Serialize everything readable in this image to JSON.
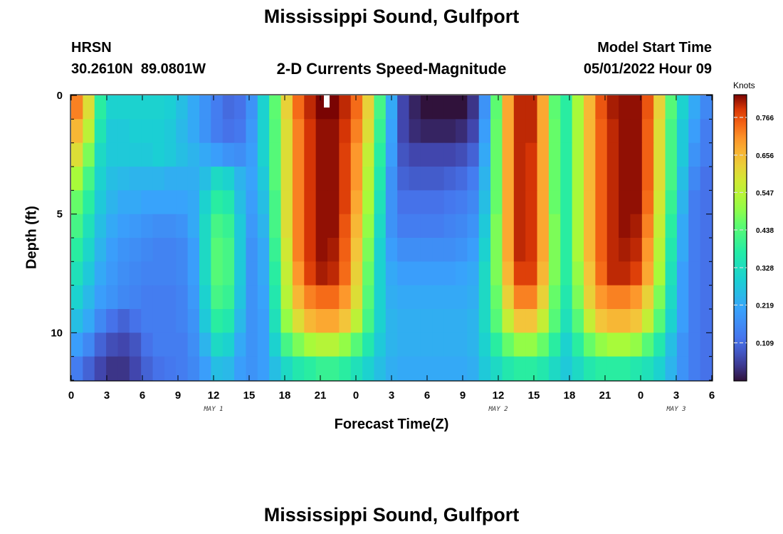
{
  "header": {
    "title": "Mississippi Sound, Gulfport",
    "station_code": "HRSN",
    "coordinates": "30.2610N  89.0801W",
    "plot_subtitle": "2-D Currents Speed-Magnitude",
    "model_start_label": "Model Start Time",
    "model_start_value": "05/01/2022 Hour 09"
  },
  "footer": {
    "title": "Mississippi Sound, Gulfport"
  },
  "colorbar": {
    "title": "Knots",
    "ticks": [
      "0.766",
      "0.656",
      "0.547",
      "0.438",
      "0.328",
      "0.219",
      "0.109"
    ],
    "tick_values": [
      0.766,
      0.656,
      0.547,
      0.438,
      0.328,
      0.219,
      0.109
    ],
    "min": 0.0,
    "max": 0.83,
    "colormap": "turbo"
  },
  "chart_data": {
    "type": "heatmap",
    "xlabel": "Forecast Time(Z)",
    "ylabel": "Depth (ft)",
    "x_tick_labels": [
      "0",
      "3",
      "6",
      "9",
      "12",
      "15",
      "18",
      "21",
      "0",
      "3",
      "6",
      "9",
      "12",
      "15",
      "18",
      "21",
      "0",
      "3",
      "6"
    ],
    "x_range_hours": [
      0,
      54
    ],
    "date_labels": [
      {
        "text": "MAY 1",
        "hour": 12
      },
      {
        "text": "MAY 2",
        "hour": 36
      },
      {
        "text": "MAY 3",
        "hour": 51
      }
    ],
    "y_tick_labels": [
      "0",
      "5",
      "10"
    ],
    "y_tick_values": [
      0,
      5,
      10
    ],
    "y_range_ft": [
      0,
      12
    ],
    "y_inverted": true,
    "x_hours": [
      0,
      1,
      2,
      3,
      4,
      5,
      6,
      7,
      8,
      9,
      10,
      11,
      12,
      13,
      14,
      15,
      16,
      17,
      18,
      19,
      20,
      21,
      22,
      23,
      24,
      25,
      26,
      27,
      28,
      29,
      30,
      31,
      32,
      33,
      34,
      35,
      36,
      37,
      38,
      39,
      40,
      41,
      42,
      43,
      44,
      45,
      46,
      47,
      48,
      49,
      50,
      51,
      52,
      53,
      54
    ],
    "depth_rows_ft": [
      0.5,
      1.5,
      2.5,
      3.5,
      4.5,
      5.5,
      6.5,
      7.5,
      8.5,
      9.5,
      10.5,
      11.5
    ],
    "speed_knots_by_depth": [
      [
        0.72,
        0.6,
        0.38,
        0.3,
        0.3,
        0.3,
        0.3,
        0.3,
        0.29,
        0.26,
        0.22,
        0.18,
        0.14,
        0.11,
        0.12,
        0.18,
        0.3,
        0.45,
        0.62,
        0.74,
        0.8,
        0.83,
        0.83,
        0.8,
        0.74,
        0.62,
        0.42,
        0.22,
        0.06,
        0.02,
        0.0,
        0.0,
        0.0,
        0.0,
        0.04,
        0.18,
        0.45,
        0.68,
        0.8,
        0.8,
        0.68,
        0.45,
        0.38,
        0.52,
        0.66,
        0.76,
        0.81,
        0.82,
        0.82,
        0.76,
        0.62,
        0.44,
        0.3,
        0.22,
        0.16
      ],
      [
        0.66,
        0.55,
        0.35,
        0.28,
        0.28,
        0.29,
        0.29,
        0.29,
        0.28,
        0.25,
        0.22,
        0.18,
        0.14,
        0.12,
        0.13,
        0.19,
        0.3,
        0.44,
        0.6,
        0.72,
        0.79,
        0.82,
        0.82,
        0.79,
        0.72,
        0.6,
        0.4,
        0.21,
        0.06,
        0.03,
        0.02,
        0.02,
        0.02,
        0.03,
        0.06,
        0.2,
        0.46,
        0.68,
        0.8,
        0.8,
        0.68,
        0.46,
        0.38,
        0.52,
        0.66,
        0.75,
        0.8,
        0.82,
        0.82,
        0.75,
        0.6,
        0.42,
        0.28,
        0.2,
        0.14
      ],
      [
        0.6,
        0.48,
        0.32,
        0.28,
        0.28,
        0.28,
        0.28,
        0.29,
        0.28,
        0.26,
        0.24,
        0.22,
        0.2,
        0.18,
        0.17,
        0.2,
        0.3,
        0.44,
        0.6,
        0.72,
        0.79,
        0.82,
        0.82,
        0.78,
        0.7,
        0.56,
        0.38,
        0.2,
        0.08,
        0.06,
        0.06,
        0.06,
        0.06,
        0.07,
        0.1,
        0.22,
        0.46,
        0.68,
        0.8,
        0.79,
        0.68,
        0.46,
        0.38,
        0.52,
        0.66,
        0.75,
        0.8,
        0.82,
        0.82,
        0.75,
        0.6,
        0.42,
        0.28,
        0.18,
        0.14
      ],
      [
        0.52,
        0.42,
        0.3,
        0.26,
        0.25,
        0.24,
        0.24,
        0.24,
        0.23,
        0.23,
        0.23,
        0.26,
        0.32,
        0.3,
        0.24,
        0.21,
        0.28,
        0.44,
        0.6,
        0.72,
        0.79,
        0.82,
        0.82,
        0.78,
        0.7,
        0.54,
        0.36,
        0.18,
        0.1,
        0.09,
        0.09,
        0.09,
        0.1,
        0.11,
        0.14,
        0.24,
        0.46,
        0.68,
        0.8,
        0.79,
        0.68,
        0.46,
        0.38,
        0.52,
        0.66,
        0.75,
        0.8,
        0.82,
        0.82,
        0.75,
        0.6,
        0.42,
        0.26,
        0.16,
        0.12
      ],
      [
        0.46,
        0.38,
        0.28,
        0.24,
        0.22,
        0.22,
        0.21,
        0.21,
        0.21,
        0.21,
        0.22,
        0.3,
        0.38,
        0.36,
        0.26,
        0.2,
        0.26,
        0.42,
        0.6,
        0.72,
        0.79,
        0.82,
        0.82,
        0.78,
        0.68,
        0.52,
        0.34,
        0.18,
        0.12,
        0.12,
        0.12,
        0.12,
        0.13,
        0.14,
        0.16,
        0.26,
        0.46,
        0.68,
        0.8,
        0.79,
        0.68,
        0.46,
        0.38,
        0.52,
        0.66,
        0.75,
        0.8,
        0.82,
        0.82,
        0.74,
        0.58,
        0.4,
        0.24,
        0.14,
        0.12
      ],
      [
        0.42,
        0.34,
        0.26,
        0.22,
        0.2,
        0.19,
        0.18,
        0.17,
        0.17,
        0.18,
        0.22,
        0.32,
        0.42,
        0.4,
        0.28,
        0.19,
        0.24,
        0.42,
        0.6,
        0.72,
        0.79,
        0.82,
        0.82,
        0.76,
        0.66,
        0.5,
        0.32,
        0.18,
        0.14,
        0.14,
        0.14,
        0.14,
        0.15,
        0.16,
        0.18,
        0.28,
        0.48,
        0.68,
        0.8,
        0.79,
        0.68,
        0.48,
        0.38,
        0.52,
        0.66,
        0.75,
        0.8,
        0.82,
        0.81,
        0.72,
        0.56,
        0.38,
        0.22,
        0.14,
        0.12
      ],
      [
        0.38,
        0.31,
        0.24,
        0.2,
        0.18,
        0.17,
        0.16,
        0.15,
        0.15,
        0.16,
        0.2,
        0.32,
        0.44,
        0.42,
        0.28,
        0.18,
        0.22,
        0.4,
        0.58,
        0.72,
        0.79,
        0.82,
        0.81,
        0.75,
        0.64,
        0.48,
        0.3,
        0.2,
        0.17,
        0.17,
        0.17,
        0.17,
        0.17,
        0.18,
        0.2,
        0.3,
        0.48,
        0.68,
        0.8,
        0.79,
        0.68,
        0.48,
        0.38,
        0.52,
        0.66,
        0.75,
        0.8,
        0.81,
        0.8,
        0.7,
        0.54,
        0.36,
        0.22,
        0.14,
        0.12
      ],
      [
        0.34,
        0.28,
        0.22,
        0.19,
        0.17,
        0.16,
        0.15,
        0.15,
        0.15,
        0.16,
        0.2,
        0.32,
        0.44,
        0.42,
        0.28,
        0.18,
        0.22,
        0.38,
        0.56,
        0.7,
        0.78,
        0.81,
        0.8,
        0.74,
        0.62,
        0.46,
        0.3,
        0.22,
        0.2,
        0.2,
        0.2,
        0.2,
        0.2,
        0.21,
        0.22,
        0.32,
        0.48,
        0.66,
        0.78,
        0.78,
        0.66,
        0.48,
        0.38,
        0.5,
        0.64,
        0.74,
        0.8,
        0.8,
        0.78,
        0.68,
        0.52,
        0.34,
        0.2,
        0.14,
        0.12
      ],
      [
        0.3,
        0.25,
        0.2,
        0.18,
        0.16,
        0.15,
        0.14,
        0.14,
        0.14,
        0.15,
        0.19,
        0.3,
        0.42,
        0.4,
        0.27,
        0.18,
        0.21,
        0.36,
        0.54,
        0.66,
        0.72,
        0.74,
        0.74,
        0.7,
        0.6,
        0.44,
        0.3,
        0.23,
        0.22,
        0.22,
        0.22,
        0.22,
        0.22,
        0.22,
        0.23,
        0.32,
        0.46,
        0.62,
        0.72,
        0.72,
        0.62,
        0.46,
        0.36,
        0.48,
        0.62,
        0.7,
        0.72,
        0.72,
        0.7,
        0.62,
        0.48,
        0.32,
        0.2,
        0.14,
        0.12
      ],
      [
        0.26,
        0.22,
        0.16,
        0.12,
        0.1,
        0.12,
        0.14,
        0.14,
        0.14,
        0.15,
        0.18,
        0.28,
        0.38,
        0.36,
        0.25,
        0.18,
        0.2,
        0.34,
        0.5,
        0.6,
        0.66,
        0.68,
        0.68,
        0.64,
        0.55,
        0.42,
        0.3,
        0.24,
        0.23,
        0.23,
        0.23,
        0.23,
        0.23,
        0.23,
        0.24,
        0.32,
        0.44,
        0.56,
        0.64,
        0.64,
        0.56,
        0.44,
        0.34,
        0.44,
        0.56,
        0.64,
        0.66,
        0.66,
        0.64,
        0.56,
        0.44,
        0.3,
        0.2,
        0.14,
        0.12
      ],
      [
        0.2,
        0.16,
        0.1,
        0.07,
        0.06,
        0.08,
        0.12,
        0.14,
        0.14,
        0.14,
        0.17,
        0.24,
        0.32,
        0.3,
        0.22,
        0.18,
        0.2,
        0.3,
        0.42,
        0.48,
        0.52,
        0.54,
        0.54,
        0.5,
        0.44,
        0.36,
        0.28,
        0.24,
        0.23,
        0.23,
        0.23,
        0.23,
        0.23,
        0.23,
        0.24,
        0.3,
        0.38,
        0.46,
        0.5,
        0.5,
        0.46,
        0.38,
        0.3,
        0.38,
        0.46,
        0.5,
        0.52,
        0.52,
        0.5,
        0.44,
        0.36,
        0.26,
        0.18,
        0.14,
        0.12
      ],
      [
        0.14,
        0.1,
        0.06,
        0.04,
        0.04,
        0.06,
        0.1,
        0.12,
        0.13,
        0.14,
        0.16,
        0.2,
        0.26,
        0.25,
        0.2,
        0.18,
        0.2,
        0.26,
        0.32,
        0.36,
        0.38,
        0.4,
        0.4,
        0.38,
        0.34,
        0.3,
        0.26,
        0.23,
        0.22,
        0.22,
        0.22,
        0.22,
        0.22,
        0.22,
        0.23,
        0.28,
        0.32,
        0.36,
        0.38,
        0.38,
        0.36,
        0.32,
        0.28,
        0.32,
        0.36,
        0.38,
        0.38,
        0.38,
        0.36,
        0.34,
        0.3,
        0.24,
        0.18,
        0.14,
        0.12
      ]
    ]
  }
}
